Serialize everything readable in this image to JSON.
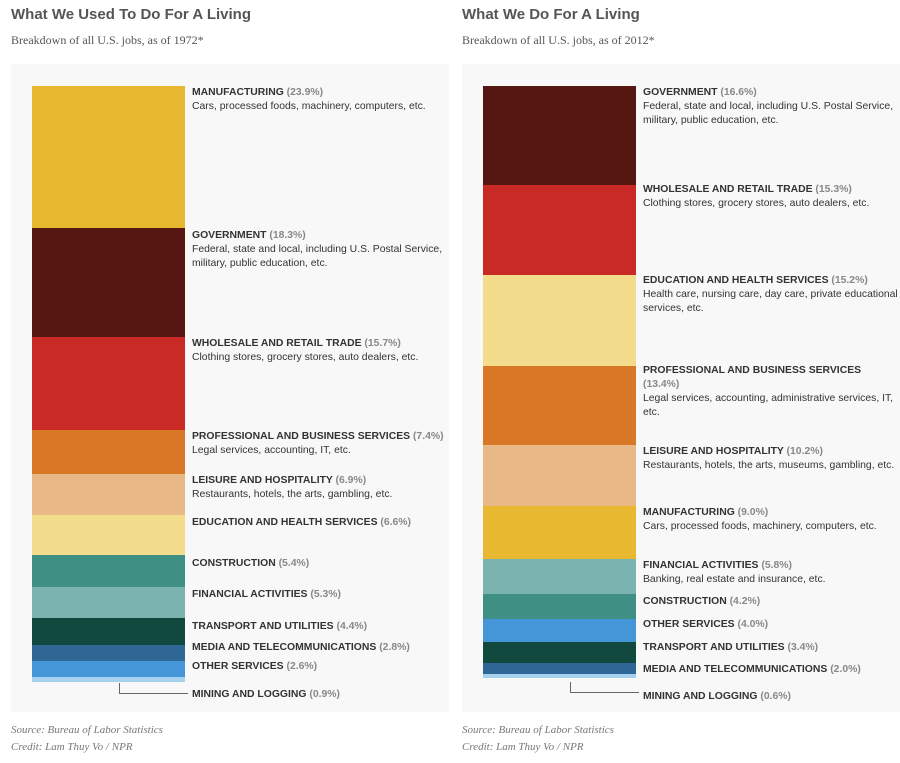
{
  "chart_data": [
    {
      "type": "bar",
      "title": "What We Used To Do For A Living",
      "subtitle": "Breakdown of all U.S. jobs, as of 1972*",
      "source": "Source: Bureau of Labor Statistics",
      "credit": "Credit: Lam Thuy Vo / NPR",
      "segments": [
        {
          "name": "MANUFACTURING",
          "pct_label": "(23.9%)",
          "value": 23.9,
          "desc": "Cars, processed foods, machinery, computers, etc.",
          "color": "#e8b830"
        },
        {
          "name": "GOVERNMENT",
          "pct_label": "(18.3%)",
          "value": 18.3,
          "desc": "Federal, state and local, including U.S. Postal Service, military, public education, etc.",
          "color": "#561712"
        },
        {
          "name": "WHOLESALE AND RETAIL TRADE",
          "pct_label": "(15.7%)",
          "value": 15.7,
          "desc": "Clothing stores, grocery stores, auto dealers, etc.",
          "color": "#c92a25"
        },
        {
          "name": "PROFESSIONAL AND BUSINESS SERVICES",
          "pct_label": "(7.4%)",
          "value": 7.4,
          "desc": "Legal services, accounting, IT, etc.",
          "color": "#d87726"
        },
        {
          "name": "LEISURE AND HOSPITALITY",
          "pct_label": "(6.9%)",
          "value": 6.9,
          "desc": "Restaurants, hotels, the arts, gambling, etc.",
          "color": "#e8b987"
        },
        {
          "name": "EDUCATION AND HEALTH SERVICES",
          "pct_label": "(6.6%)",
          "value": 6.6,
          "desc": "",
          "color": "#f3dc8c"
        },
        {
          "name": "CONSTRUCTION",
          "pct_label": "(5.4%)",
          "value": 5.4,
          "desc": "",
          "color": "#3f8f84"
        },
        {
          "name": "FINANCIAL ACTIVITIES",
          "pct_label": "(5.3%)",
          "value": 5.3,
          "desc": "",
          "color": "#7bb3b0"
        },
        {
          "name": "TRANSPORT AND UTILITIES",
          "pct_label": "(4.4%)",
          "value": 4.4,
          "desc": "",
          "color": "#12493f"
        },
        {
          "name": "MEDIA AND TELECOMMUNICATIONS",
          "pct_label": "(2.8%)",
          "value": 2.8,
          "desc": "",
          "color": "#2e6796"
        },
        {
          "name": "OTHER SERVICES",
          "pct_label": "(2.6%)",
          "value": 2.6,
          "desc": "",
          "color": "#4596d8"
        },
        {
          "name": "MINING AND LOGGING",
          "pct_label": "(0.9%)",
          "value": 0.9,
          "desc": "",
          "color": "#a6d0ee"
        }
      ]
    },
    {
      "type": "bar",
      "title": "What We Do For A Living",
      "subtitle": "Breakdown of all U.S. jobs, as of 2012*",
      "source": "Source: Bureau of Labor Statistics",
      "credit": "Credit: Lam Thuy Vo / NPR",
      "segments": [
        {
          "name": "GOVERNMENT",
          "pct_label": "(16.6%)",
          "value": 16.6,
          "desc": "Federal, state and local, including U.S. Postal Service, military, public education, etc.",
          "color": "#561712"
        },
        {
          "name": "WHOLESALE AND RETAIL TRADE",
          "pct_label": "(15.3%)",
          "value": 15.3,
          "desc": "Clothing stores, grocery stores, auto dealers, etc.",
          "color": "#c92a25"
        },
        {
          "name": "EDUCATION AND HEALTH SERVICES",
          "pct_label": "(15.2%)",
          "value": 15.2,
          "desc": "Health care, nursing care, day care, private educational services, etc.",
          "color": "#f3dc8c"
        },
        {
          "name": "PROFESSIONAL AND BUSINESS SERVICES",
          "pct_label": "(13.4%)",
          "value": 13.4,
          "desc": "Legal services, accounting, administrative services, IT, etc.",
          "color": "#d87726"
        },
        {
          "name": "LEISURE AND HOSPITALITY",
          "pct_label": "(10.2%)",
          "value": 10.2,
          "desc": "Restaurants, hotels, the arts, museums, gambling, etc.",
          "color": "#e8b987"
        },
        {
          "name": "MANUFACTURING",
          "pct_label": "(9.0%)",
          "value": 9.0,
          "desc": "Cars, processed foods, machinery, computers, etc.",
          "color": "#e8b830"
        },
        {
          "name": "FINANCIAL ACTIVITIES",
          "pct_label": "(5.8%)",
          "value": 5.8,
          "desc": "Banking, real estate and insurance, etc.",
          "color": "#7bb3b0"
        },
        {
          "name": "CONSTRUCTION",
          "pct_label": "(4.2%)",
          "value": 4.2,
          "desc": "",
          "color": "#3f8f84"
        },
        {
          "name": "OTHER SERVICES",
          "pct_label": "(4.0%)",
          "value": 4.0,
          "desc": "",
          "color": "#4596d8"
        },
        {
          "name": "TRANSPORT AND UTILITIES",
          "pct_label": "(3.4%)",
          "value": 3.4,
          "desc": "",
          "color": "#12493f"
        },
        {
          "name": "MEDIA AND TELECOMMUNICATIONS",
          "pct_label": "(2.0%)",
          "value": 2.0,
          "desc": "",
          "color": "#2e6796"
        },
        {
          "name": "MINING AND LOGGING",
          "pct_label": "(0.6%)",
          "value": 0.6,
          "desc": "",
          "color": "#a6d0ee"
        }
      ]
    }
  ]
}
